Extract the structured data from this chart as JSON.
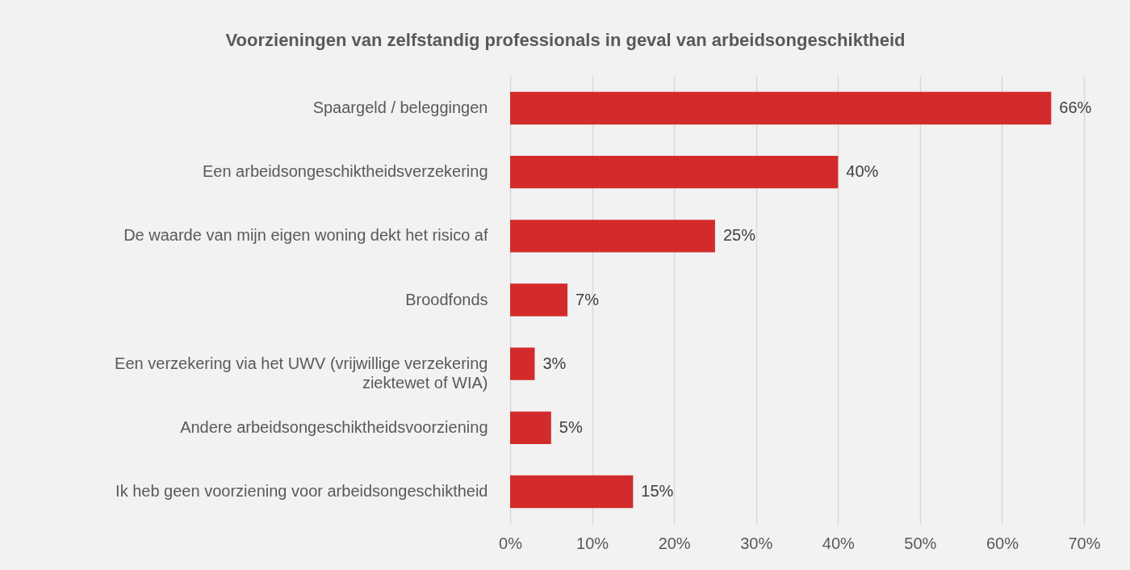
{
  "chart_data": {
    "type": "bar",
    "orientation": "horizontal",
    "title": "Voorzieningen van zelfstandig professionals in geval van arbeidsongeschiktheid",
    "categories": [
      "Spaargeld / beleggingen",
      "Een arbeidsongeschiktheidsverzekering",
      "De waarde van mijn eigen woning dekt het risico af",
      "Broodfonds",
      "Een verzekering via het UWV (vrijwillige verzekering ziektewet of WIA)",
      "Andere arbeidsongeschiktheidsvoorziening",
      "Ik heb geen voorziening voor arbeidsongeschiktheid"
    ],
    "values": [
      66,
      40,
      25,
      7,
      3,
      5,
      15
    ],
    "value_labels": [
      "66%",
      "40%",
      "25%",
      "7%",
      "3%",
      "5%",
      "15%"
    ],
    "color": "#d32b2b",
    "xlim": [
      0,
      70
    ],
    "xticks": [
      {
        "value": 0,
        "label": "0%"
      },
      {
        "value": 10,
        "label": "10%"
      },
      {
        "value": 20,
        "label": "20%"
      },
      {
        "value": 30,
        "label": "30%"
      },
      {
        "value": 40,
        "label": "40%"
      },
      {
        "value": 50,
        "label": "50%"
      },
      {
        "value": 60,
        "label": "60%"
      },
      {
        "value": 70,
        "label": "70%"
      }
    ],
    "grid": "x"
  }
}
